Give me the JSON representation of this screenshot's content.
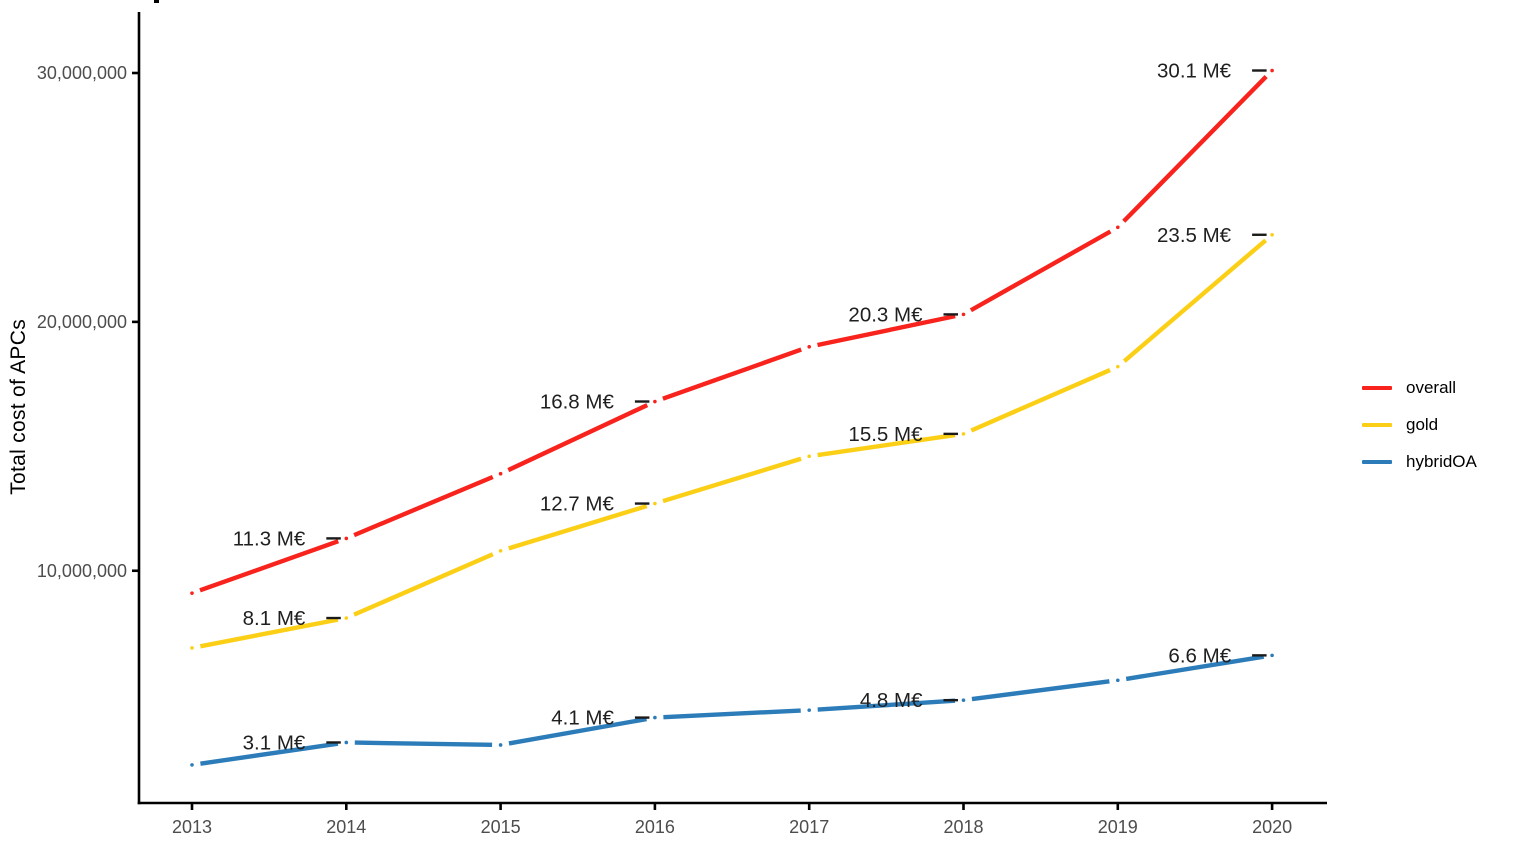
{
  "page": {
    "background": "#FFFFFF"
  },
  "chart_data": {
    "type": "line",
    "title": "",
    "xlabel": "",
    "ylabel": "Total cost of APCs",
    "x": [
      2013,
      2014,
      2015,
      2016,
      2017,
      2018,
      2019,
      2020
    ],
    "x_tick_labels": [
      "2013",
      "2014",
      "2015",
      "2016",
      "2017",
      "2018",
      "2019",
      "2020"
    ],
    "y_ticks": [
      {
        "value": 10000000,
        "label": "10,000,000"
      },
      {
        "value": 20000000,
        "label": "20,000,000"
      },
      {
        "value": 30000000,
        "label": "30,000,000"
      }
    ],
    "ylim": [
      650000,
      32450000
    ],
    "grid": false,
    "legend_position": "right",
    "label_unit": "M€",
    "axis_color": "#000000",
    "tick_text_color": "#4D4D4D",
    "point_label_color": "#1F1F1F",
    "series": [
      {
        "name": "overall",
        "color": "#F8231D",
        "values": [
          9100000,
          11300000,
          13900000,
          16800000,
          19000000,
          20300000,
          23800000,
          30100000
        ],
        "point_labels": [
          "",
          "11.3 M€",
          "",
          "16.8 M€",
          "",
          "20.3 M€",
          "",
          "30.1 M€"
        ]
      },
      {
        "name": "gold",
        "color": "#FCCF17",
        "values": [
          6900000,
          8100000,
          10800000,
          12700000,
          14600000,
          15500000,
          18200000,
          23500000
        ],
        "point_labels": [
          "",
          "8.1 M€",
          "",
          "12.7 M€",
          "",
          "15.5 M€",
          "",
          "23.5 M€"
        ]
      },
      {
        "name": "hybridOA",
        "color": "#2C7CB9",
        "values": [
          2200000,
          3100000,
          3000000,
          4100000,
          4400000,
          4800000,
          5600000,
          6600000
        ],
        "point_labels": [
          "",
          "3.1 M€",
          "",
          "4.1 M€",
          "",
          "4.8 M€",
          "",
          "6.6 M€"
        ]
      }
    ]
  }
}
